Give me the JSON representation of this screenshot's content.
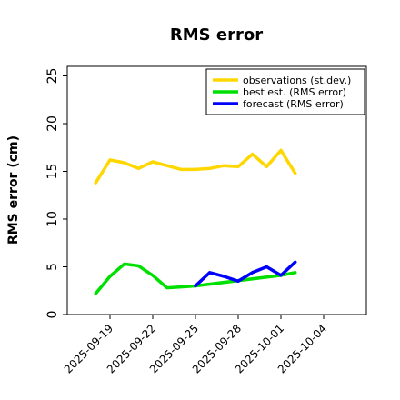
{
  "chart_data": {
    "type": "line",
    "title": "RMS error",
    "ylabel": "RMS error (cm)",
    "xlabel": "",
    "ylim": [
      0,
      26
    ],
    "y_ticks": [
      0,
      5,
      10,
      15,
      20,
      25
    ],
    "x_range": [
      "2025-09-16",
      "2025-10-07"
    ],
    "x_ticks": [
      {
        "label": "2025-09-19",
        "color": "#000000"
      },
      {
        "label": "2025-09-22",
        "color": "#000000"
      },
      {
        "label": "2025-09-25",
        "color": "#228B22"
      },
      {
        "label": "2025-09-28",
        "color": "#000000"
      },
      {
        "label": "2025-10-01",
        "color": "#000000"
      },
      {
        "label": "2025-10-04",
        "color": "#000000"
      }
    ],
    "grid": false,
    "legend_position": "top-right",
    "series": [
      {
        "name": "observations (st.dev.)",
        "color": "#FFD700",
        "points": [
          [
            "2025-09-18",
            13.8
          ],
          [
            "2025-09-19",
            16.2
          ],
          [
            "2025-09-20",
            15.9
          ],
          [
            "2025-09-21",
            15.3
          ],
          [
            "2025-09-22",
            16.0
          ],
          [
            "2025-09-23",
            15.6
          ],
          [
            "2025-09-24",
            15.2
          ],
          [
            "2025-09-25",
            15.2
          ],
          [
            "2025-09-26",
            15.3
          ],
          [
            "2025-09-27",
            15.6
          ],
          [
            "2025-09-28",
            15.5
          ],
          [
            "2025-09-29",
            16.8
          ],
          [
            "2025-09-30",
            15.5
          ],
          [
            "2025-10-01",
            17.2
          ],
          [
            "2025-10-02",
            14.8
          ]
        ]
      },
      {
        "name": "best est. (RMS error)",
        "color": "#00E000",
        "points": [
          [
            "2025-09-18",
            2.2
          ],
          [
            "2025-09-19",
            4.0
          ],
          [
            "2025-09-20",
            5.3
          ],
          [
            "2025-09-21",
            5.1
          ],
          [
            "2025-09-22",
            4.1
          ],
          [
            "2025-09-23",
            2.8
          ],
          [
            "2025-09-24",
            2.9
          ],
          [
            "2025-09-25",
            3.0
          ],
          [
            "2025-10-01",
            4.1
          ],
          [
            "2025-10-02",
            4.4
          ]
        ]
      },
      {
        "name": "forecast (RMS error)",
        "color": "#0000FF",
        "points": [
          [
            "2025-09-25",
            3.0
          ],
          [
            "2025-09-26",
            4.4
          ],
          [
            "2025-09-27",
            4.0
          ],
          [
            "2025-09-28",
            3.5
          ],
          [
            "2025-09-29",
            4.4
          ],
          [
            "2025-09-30",
            5.0
          ],
          [
            "2025-10-01",
            4.1
          ],
          [
            "2025-10-02",
            5.5
          ]
        ]
      }
    ]
  }
}
